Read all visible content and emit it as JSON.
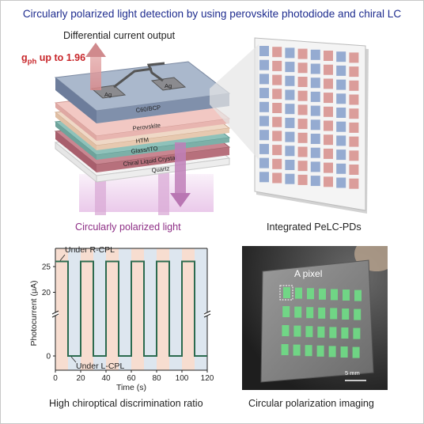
{
  "title": "Circularly polarized light detection by using perovskite photodiode and chiral LC",
  "device": {
    "output_label": "Differential current output",
    "gph_symbol": "g",
    "gph_subscript": "ph",
    "gph_text": " up to 1.96",
    "input_label": "Circularly polarized light",
    "electrode_label": "Ag",
    "layers": [
      "C60/BCP",
      "Perovskite",
      "HTM",
      "Glass/ITO",
      "Chiral Liquid Crystal",
      "Quartz"
    ],
    "colors": {
      "gph": "#c8262a",
      "input_light": "#9c3b93",
      "title": "#1f2d8f"
    }
  },
  "array": {
    "caption": "Integrated PeLC-PDs",
    "rows": 10,
    "cols": 8,
    "colors": {
      "blue_pixel": "#8fa6cf",
      "red_pixel": "#d99895"
    }
  },
  "chart_data": {
    "type": "line",
    "xlabel": "Time (s)",
    "ylabel": "Photocurrent (μA)",
    "xlim": [
      0,
      120
    ],
    "xticks": [
      0,
      20,
      40,
      60,
      80,
      100,
      120
    ],
    "yticks_upper": [
      20,
      25
    ],
    "yticks_lower": [
      0
    ],
    "annotation_top": "Under R-CPL",
    "annotation_bottom": "Under L-CPL",
    "series": [
      {
        "x": [
          0,
          10,
          10,
          20,
          20,
          30,
          30,
          40,
          40,
          50,
          50,
          60,
          60,
          70,
          70,
          80,
          80,
          90,
          90,
          100,
          100,
          110,
          110,
          120
        ],
        "y": [
          26,
          26,
          0,
          0,
          26,
          26,
          0,
          0,
          26,
          26,
          0,
          0,
          26,
          26,
          0,
          0,
          26,
          26,
          0,
          0,
          26,
          26,
          0,
          0
        ],
        "color": "#2c6b4f"
      }
    ],
    "background_bands": [
      {
        "from": 0,
        "to": 10,
        "state": "R"
      },
      {
        "from": 10,
        "to": 20,
        "state": "L"
      },
      {
        "from": 20,
        "to": 30,
        "state": "R"
      },
      {
        "from": 30,
        "to": 40,
        "state": "L"
      },
      {
        "from": 40,
        "to": 50,
        "state": "R"
      },
      {
        "from": 50,
        "to": 60,
        "state": "L"
      },
      {
        "from": 60,
        "to": 70,
        "state": "R"
      },
      {
        "from": 70,
        "to": 80,
        "state": "L"
      },
      {
        "from": 80,
        "to": 90,
        "state": "R"
      },
      {
        "from": 90,
        "to": 100,
        "state": "L"
      },
      {
        "from": 100,
        "to": 110,
        "state": "R"
      },
      {
        "from": 110,
        "to": 120,
        "state": "L"
      }
    ],
    "band_colors": {
      "R": "#f7ddd0",
      "L": "#dde6ef"
    },
    "caption": "High chiroptical discrimination ratio"
  },
  "photo": {
    "pixel_label": "A pixel",
    "scale_label": "5 mm",
    "caption": "Circular polarization imaging",
    "pixel_color": "#6fdc86"
  }
}
